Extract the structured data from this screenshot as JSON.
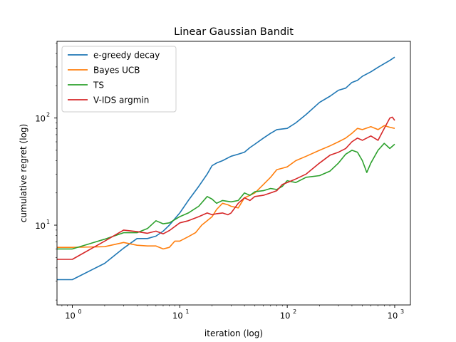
{
  "chart_data": {
    "type": "line",
    "title": "Linear Gaussian Bandit",
    "xlabel": "iteration (log)",
    "ylabel": "cumulative regret (log)",
    "xscale": "log",
    "yscale": "log",
    "xlim": [
      0.72,
      1400
    ],
    "ylim": [
      1.8,
      520
    ],
    "grid": false,
    "legend_position": "top-left",
    "x_ticks": [
      {
        "value": 1,
        "label": "10",
        "exp": "0"
      },
      {
        "value": 10,
        "label": "10",
        "exp": "1"
      },
      {
        "value": 100,
        "label": "10",
        "exp": "2"
      },
      {
        "value": 1000,
        "label": "10",
        "exp": "3"
      }
    ],
    "y_ticks": [
      {
        "value": 10,
        "label": "10",
        "exp": "1"
      },
      {
        "value": 100,
        "label": "10",
        "exp": "2"
      }
    ],
    "series": [
      {
        "name": "e-greedy decay",
        "color": "#1f77b4",
        "points": [
          [
            0.72,
            3.1
          ],
          [
            1,
            3.1
          ],
          [
            2,
            4.4
          ],
          [
            3,
            6.1
          ],
          [
            4,
            7.5
          ],
          [
            5,
            7.5
          ],
          [
            6,
            7.9
          ],
          [
            7,
            8.8
          ],
          [
            8,
            10
          ],
          [
            10,
            13
          ],
          [
            12,
            17
          ],
          [
            15,
            23
          ],
          [
            18,
            30
          ],
          [
            20,
            36
          ],
          [
            22,
            38
          ],
          [
            25,
            40
          ],
          [
            30,
            44
          ],
          [
            35,
            46
          ],
          [
            40,
            48
          ],
          [
            45,
            53
          ],
          [
            50,
            57
          ],
          [
            60,
            65
          ],
          [
            70,
            72
          ],
          [
            80,
            78
          ],
          [
            100,
            80
          ],
          [
            120,
            90
          ],
          [
            150,
            108
          ],
          [
            200,
            140
          ],
          [
            250,
            160
          ],
          [
            300,
            182
          ],
          [
            350,
            190
          ],
          [
            400,
            215
          ],
          [
            450,
            225
          ],
          [
            500,
            245
          ],
          [
            600,
            270
          ],
          [
            700,
            298
          ],
          [
            800,
            322
          ],
          [
            900,
            345
          ],
          [
            1000,
            370
          ]
        ]
      },
      {
        "name": "Bayes UCB",
        "color": "#ff7f0e",
        "points": [
          [
            0.72,
            6.2
          ],
          [
            1,
            6.2
          ],
          [
            2,
            6.3
          ],
          [
            3,
            6.9
          ],
          [
            4,
            6.5
          ],
          [
            5,
            6.4
          ],
          [
            6,
            6.4
          ],
          [
            7,
            6.0
          ],
          [
            8,
            6.2
          ],
          [
            9,
            7.1
          ],
          [
            10,
            7.1
          ],
          [
            12,
            7.8
          ],
          [
            14,
            8.5
          ],
          [
            16,
            10
          ],
          [
            18,
            11
          ],
          [
            20,
            12
          ],
          [
            22,
            14
          ],
          [
            25,
            16
          ],
          [
            28,
            15.5
          ],
          [
            30,
            15
          ],
          [
            35,
            14.5
          ],
          [
            40,
            18
          ],
          [
            45,
            19
          ],
          [
            50,
            20
          ],
          [
            60,
            24
          ],
          [
            70,
            28
          ],
          [
            80,
            33
          ],
          [
            90,
            34
          ],
          [
            100,
            35
          ],
          [
            120,
            40
          ],
          [
            150,
            44
          ],
          [
            200,
            50
          ],
          [
            250,
            55
          ],
          [
            300,
            60
          ],
          [
            350,
            65
          ],
          [
            400,
            72
          ],
          [
            450,
            80
          ],
          [
            500,
            78
          ],
          [
            600,
            83
          ],
          [
            700,
            78
          ],
          [
            800,
            85
          ],
          [
            900,
            82
          ],
          [
            1000,
            80
          ]
        ]
      },
      {
        "name": "TS",
        "color": "#2ca02c",
        "points": [
          [
            0.72,
            6.0
          ],
          [
            1,
            6.0
          ],
          [
            2,
            7.4
          ],
          [
            3,
            8.5
          ],
          [
            4,
            8.5
          ],
          [
            5,
            9.3
          ],
          [
            6,
            11
          ],
          [
            7,
            10.3
          ],
          [
            8,
            10.5
          ],
          [
            10,
            12
          ],
          [
            12,
            13
          ],
          [
            15,
            15
          ],
          [
            18,
            18.5
          ],
          [
            20,
            17.5
          ],
          [
            22,
            16
          ],
          [
            25,
            17
          ],
          [
            30,
            16.5
          ],
          [
            35,
            17
          ],
          [
            40,
            20
          ],
          [
            45,
            19
          ],
          [
            50,
            20.5
          ],
          [
            60,
            21
          ],
          [
            70,
            22
          ],
          [
            80,
            21.5
          ],
          [
            90,
            23
          ],
          [
            100,
            26
          ],
          [
            120,
            25
          ],
          [
            150,
            28
          ],
          [
            200,
            29
          ],
          [
            250,
            32
          ],
          [
            300,
            38
          ],
          [
            350,
            46
          ],
          [
            400,
            50
          ],
          [
            450,
            48
          ],
          [
            500,
            40
          ],
          [
            550,
            31
          ],
          [
            600,
            38
          ],
          [
            700,
            50
          ],
          [
            800,
            58
          ],
          [
            900,
            52
          ],
          [
            1000,
            57
          ]
        ]
      },
      {
        "name": "V-IDS argmin",
        "color": "#d62728",
        "points": [
          [
            0.72,
            4.8
          ],
          [
            1,
            4.8
          ],
          [
            2,
            7.1
          ],
          [
            3,
            9.0
          ],
          [
            4,
            8.7
          ],
          [
            5,
            8.4
          ],
          [
            6,
            8.8
          ],
          [
            7,
            8.3
          ],
          [
            8,
            8.9
          ],
          [
            10,
            10.5
          ],
          [
            12,
            11
          ],
          [
            15,
            12
          ],
          [
            18,
            13
          ],
          [
            20,
            12.5
          ],
          [
            22,
            12.8
          ],
          [
            25,
            13
          ],
          [
            28,
            12.5
          ],
          [
            30,
            13
          ],
          [
            35,
            16
          ],
          [
            40,
            18
          ],
          [
            45,
            17
          ],
          [
            50,
            18.5
          ],
          [
            60,
            19
          ],
          [
            70,
            20
          ],
          [
            80,
            21
          ],
          [
            90,
            24
          ],
          [
            100,
            25
          ],
          [
            120,
            27
          ],
          [
            150,
            30
          ],
          [
            200,
            38
          ],
          [
            250,
            45
          ],
          [
            300,
            48
          ],
          [
            350,
            52
          ],
          [
            400,
            60
          ],
          [
            450,
            65
          ],
          [
            500,
            62
          ],
          [
            600,
            68
          ],
          [
            700,
            62
          ],
          [
            800,
            80
          ],
          [
            900,
            100
          ],
          [
            950,
            102
          ],
          [
            1000,
            95
          ]
        ]
      }
    ]
  }
}
